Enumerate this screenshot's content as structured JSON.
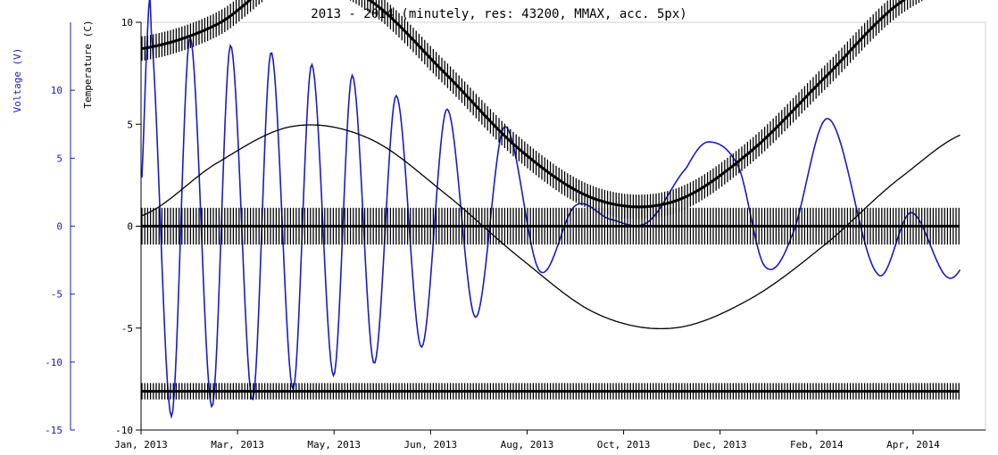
{
  "chart_data": {
    "type": "line",
    "title": "2013 - 2014 (minutely, res: 43200, MMAX, acc. 5px)",
    "x_ticks": [
      "Jan, 2013",
      "Mar, 2013",
      "May, 2013",
      "Jun, 2013",
      "Aug, 2013",
      "Oct, 2013",
      "Dec, 2013",
      "Feb, 2014",
      "Apr, 2014"
    ],
    "y_axes": [
      {
        "label": "Voltage (V)",
        "color": "#1a1acc",
        "range": [
          -15,
          15
        ],
        "ticks": [
          -15,
          -10,
          -5,
          0,
          5,
          10
        ]
      },
      {
        "label": "Temperature (C)",
        "color": "#000000",
        "range": [
          -10,
          10
        ],
        "ticks": [
          -10,
          -5,
          0,
          5,
          10
        ]
      }
    ],
    "series": [
      {
        "axis": "voltage",
        "color": "#1a1acc",
        "x": [
          0,
          0.008,
          0.012,
          0.036,
          0.058,
          0.084,
          0.106,
          0.132,
          0.154,
          0.18,
          0.202,
          0.228,
          0.25,
          0.276,
          0.302,
          0.332,
          0.362,
          0.396,
          0.43,
          0.472,
          0.514,
          0.556,
          0.6,
          0.646,
          0.672,
          0.708,
          0.738,
          0.77,
          0.814,
          0.872,
          0.912,
          0.956,
          0.992,
          1.0
        ],
        "values": [
          2.5,
          14.5,
          14.4,
          -14.0,
          13.9,
          -13.3,
          13.3,
          -12.8,
          12.8,
          -12.0,
          11.9,
          -11.0,
          11.1,
          -10.1,
          9.6,
          -8.9,
          8.6,
          -6.7,
          7.3,
          -3.3,
          1.5,
          0.5,
          0.3,
          4.3,
          6.2,
          4.3,
          -2.9,
          -0.8,
          7.9,
          -3.5,
          1.0,
          -3.8,
          -1.2,
          -1.2
        ]
      },
      {
        "axis": "temperature",
        "color": "#000000",
        "x": [
          0,
          0.09,
          0.18,
          0.27,
          0.36,
          0.45,
          0.54,
          0.63,
          0.72,
          0.81,
          0.9,
          0.99,
          1.0
        ],
        "values": [
          8.7,
          9.9,
          12.4,
          11.1,
          7.5,
          3.7,
          1.3,
          1.2,
          3.6,
          7.3,
          11.0,
          12.6,
          12.5
        ],
        "band": 0.6
      },
      {
        "axis": "temperature",
        "color": "#000000",
        "x": [
          0,
          0.09,
          0.18,
          0.27,
          0.36,
          0.45,
          0.54,
          0.63,
          0.72,
          0.81,
          0.9,
          0.99,
          1.0
        ],
        "values": [
          0.5,
          3.1,
          4.9,
          4.3,
          1.6,
          -1.6,
          -4.3,
          -5.0,
          -3.6,
          -0.9,
          2.4,
          4.7,
          3.1
        ]
      },
      {
        "axis": "temperature",
        "color": "#000000",
        "x": [
          0,
          1.0
        ],
        "values": [
          0,
          0
        ],
        "band": 0.9
      },
      {
        "axis": "temperature",
        "color": "#000000",
        "x": [
          0,
          1.0
        ],
        "values": [
          -8.1,
          -8.1
        ],
        "band": 0.4
      }
    ]
  }
}
